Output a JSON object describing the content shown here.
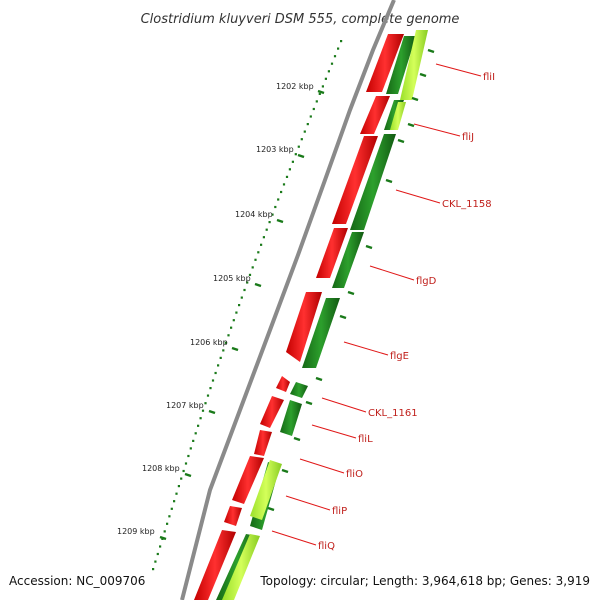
{
  "title": "Clostridium kluyveri DSM 555, complete genome",
  "footer": {
    "accession": "Accession: NC_009706",
    "topology": "Topology: circular; Length: 3,964,618 bp; Genes: 3,919"
  },
  "ticks": [
    "1202 kbp",
    "1203 kbp",
    "1204 kbp",
    "1205 kbp",
    "1206 kbp",
    "1207 kbp",
    "1208 kbp",
    "1209 kbp"
  ],
  "genes": [
    "fliI",
    "fliJ",
    "CKL_1158",
    "flgD",
    "flgE",
    "CKL_1161",
    "fliL",
    "fliO",
    "fliP",
    "fliQ"
  ],
  "colors": {
    "backbone": "#8a8a8a",
    "forward_gene": "#ff1a1a",
    "reverse_gene": "#1e8c1e",
    "highlight_track": "#b4f03c",
    "tick": "#1a7a1a",
    "label_line": "#e01818"
  }
}
